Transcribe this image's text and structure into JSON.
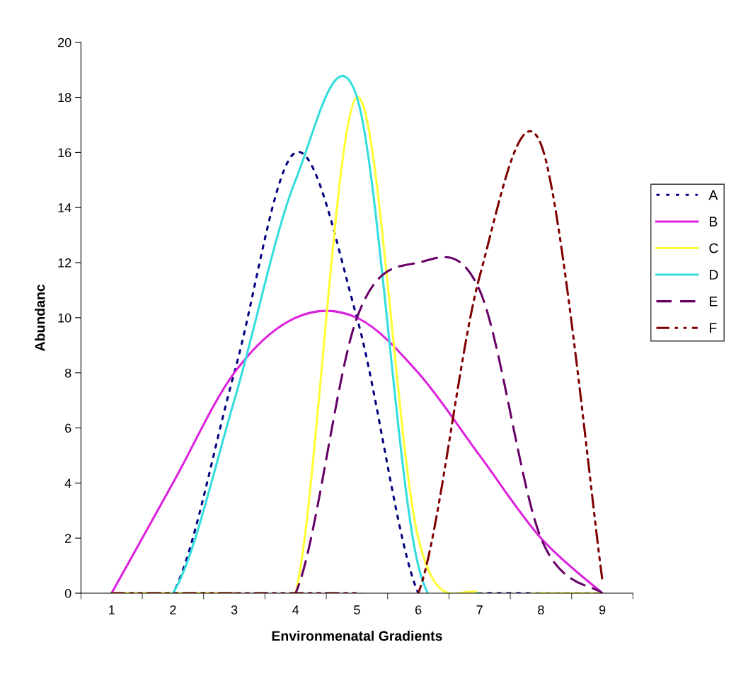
{
  "chart_data": {
    "type": "line",
    "xlabel": "Environmenatal Gradients",
    "ylabel": "Abundanc",
    "categories": [
      "1",
      "2",
      "3",
      "4",
      "5",
      "6",
      "7",
      "8",
      "9"
    ],
    "ylim": [
      0,
      20
    ],
    "yticks": [
      0,
      2,
      4,
      6,
      8,
      10,
      12,
      14,
      16,
      18,
      20
    ],
    "grid": false,
    "legend": "right",
    "marker": "none",
    "series": [
      {
        "name": "A",
        "color": "#000080",
        "line_style": "dotted",
        "values": [
          0,
          0,
          8,
          16,
          10,
          0,
          0,
          0,
          0
        ]
      },
      {
        "name": "B",
        "color": "#dd22dd",
        "line_style": "solid",
        "values": [
          0,
          4,
          8,
          10,
          10,
          8,
          5,
          2,
          0
        ]
      },
      {
        "name": "C",
        "color": "#ffff33",
        "line_style": "solid",
        "values": [
          0,
          0,
          0,
          0,
          18,
          2,
          0,
          0,
          0
        ]
      },
      {
        "name": "D",
        "color": "#33dddd",
        "line_style": "solid",
        "values": [
          0,
          0,
          7,
          15,
          18,
          1,
          0,
          null,
          null
        ]
      },
      {
        "name": "E",
        "color": "#660066",
        "line_style": "dashed",
        "values": [
          null,
          null,
          0,
          0,
          10,
          12,
          11,
          2,
          0
        ]
      },
      {
        "name": "F",
        "color": "#800000",
        "line_style": "dashdot",
        "values": [
          0,
          0,
          0,
          0,
          0,
          0,
          11.5,
          16.3,
          0.5
        ]
      }
    ]
  }
}
